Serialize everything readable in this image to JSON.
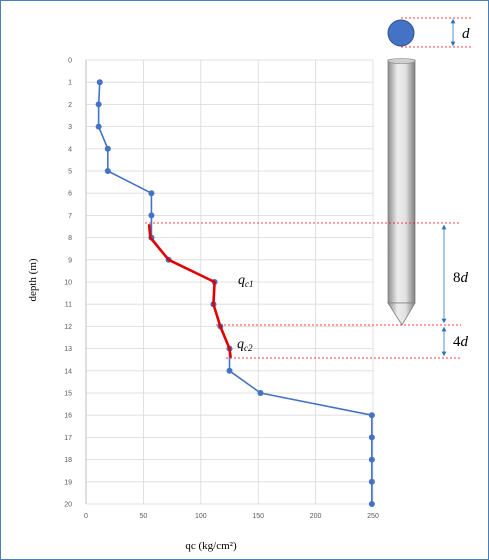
{
  "chart_data": {
    "type": "line",
    "xlabel": "qc (kg/cm²)",
    "ylabel": "depth (m)",
    "xlim": [
      0,
      250
    ],
    "ylim": [
      0,
      20
    ],
    "x_ticks": [
      "0",
      "50",
      "100",
      "150",
      "200",
      "250"
    ],
    "y_ticks": [
      "0",
      "1",
      "2",
      "3",
      "4",
      "5",
      "6",
      "7",
      "8",
      "9",
      "10",
      "11",
      "12",
      "13",
      "14",
      "15",
      "16",
      "17",
      "18",
      "19",
      "20"
    ],
    "grid": true,
    "series": [
      {
        "color": "#4472c4",
        "points": [
          {
            "x": 12,
            "y": 1
          },
          {
            "x": 11,
            "y": 2
          },
          {
            "x": 11,
            "y": 3
          },
          {
            "x": 19,
            "y": 4
          },
          {
            "x": 19,
            "y": 5
          },
          {
            "x": 57,
            "y": 6
          },
          {
            "x": 57,
            "y": 7
          },
          {
            "x": 57,
            "y": 8
          },
          {
            "x": 72,
            "y": 9
          },
          {
            "x": 112,
            "y": 10
          },
          {
            "x": 111,
            "y": 11
          },
          {
            "x": 117,
            "y": 12
          },
          {
            "x": 125,
            "y": 13
          },
          {
            "x": 125,
            "y": 14
          },
          {
            "x": 152,
            "y": 15
          },
          {
            "x": 249,
            "y": 16
          },
          {
            "x": 249,
            "y": 17
          },
          {
            "x": 249,
            "y": 18
          },
          {
            "x": 249,
            "y": 19
          },
          {
            "x": 249,
            "y": 20
          }
        ]
      },
      {
        "color": "#e00000",
        "points": [
          {
            "x": 55,
            "y": 7.4
          },
          {
            "x": 56,
            "y": 8
          },
          {
            "x": 72,
            "y": 9
          },
          {
            "x": 112,
            "y": 10
          },
          {
            "x": 111,
            "y": 11
          },
          {
            "x": 117,
            "y": 12
          },
          {
            "x": 125,
            "y": 13
          },
          {
            "x": 126,
            "y": 13.4
          }
        ]
      }
    ]
  },
  "annotations": {
    "qc1": {
      "main": "q",
      "sub": "c1"
    },
    "qc2": {
      "main": "q",
      "sub": "c2"
    },
    "d_label": "d",
    "eight_d_num": "8",
    "eight_d_var": "d",
    "four_d_num": "4",
    "four_d_var": "d"
  },
  "colors": {
    "grid": "#d9d9d9",
    "axis": "#bfbfbf",
    "dashed": "#ff0000",
    "dimension": "#2e75b6",
    "pile_circle": "#4472c4"
  }
}
